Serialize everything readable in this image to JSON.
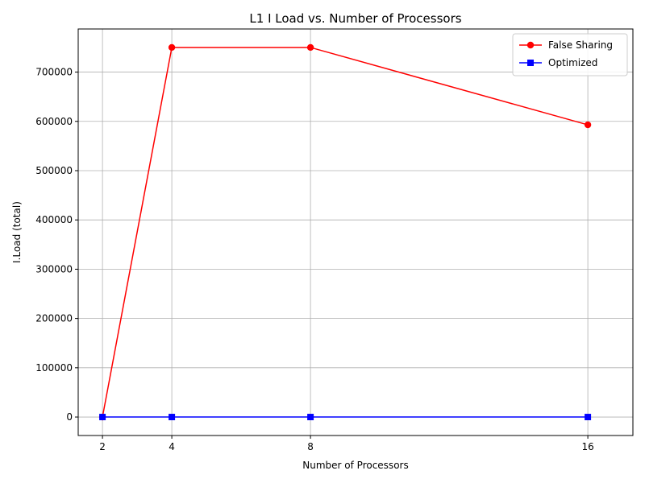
{
  "chart_data": {
    "type": "line",
    "title": "L1 I Load vs. Number of Processors",
    "xlabel": "Number of Processors",
    "ylabel": "I.Load (total)",
    "x": [
      2,
      4,
      8,
      16
    ],
    "xticks": [
      "2",
      "4",
      "8",
      "16"
    ],
    "yticks": [
      "0",
      "100000",
      "200000",
      "300000",
      "400000",
      "500000",
      "600000",
      "700000"
    ],
    "xlim": [
      1.3,
      17.3
    ],
    "ylim": [
      -37500,
      787500
    ],
    "grid": true,
    "legend_position": "top-right",
    "series": [
      {
        "name": "False Sharing",
        "color": "#ff0000",
        "marker": "circle",
        "values": [
          0,
          750000,
          750000,
          593000
        ]
      },
      {
        "name": "Optimized",
        "color": "#0000ff",
        "marker": "square",
        "values": [
          0,
          0,
          0,
          0
        ]
      }
    ]
  }
}
